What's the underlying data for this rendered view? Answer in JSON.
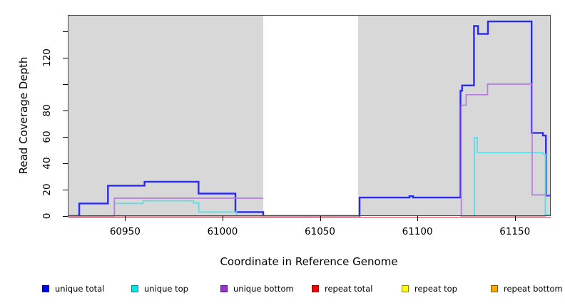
{
  "figure": {
    "xlabel": "Coordinate in Reference Genome",
    "ylabel": "Read Coverage Depth"
  },
  "chart_data": {
    "type": "line",
    "subtype": "step-coverage",
    "title": "",
    "xlabel": "Coordinate in Reference Genome",
    "ylabel": "Read Coverage Depth",
    "xlim": [
      60920.6,
      61168.4
    ],
    "ylim": [
      0,
      152.4
    ],
    "x_ticks": [
      60950,
      61000,
      61050,
      61100,
      61150
    ],
    "y_ticks": [
      0,
      20,
      40,
      60,
      80,
      100,
      120,
      140
    ],
    "y_tick_labels": [
      "0",
      "20",
      "40",
      "60",
      "80",
      "",
      "120",
      ""
    ],
    "grid": false,
    "legend_position": "bottom",
    "plot_bg_color": "#D8D8D8",
    "mask_region": {
      "x1": 61020.9,
      "x2": 61069.6,
      "color": "#FFFFFF"
    },
    "series": [
      {
        "name": "unique total",
        "color": "#2B2BF0",
        "width": 2.4,
        "segments": [
          {
            "points": [
              [
                60920.6,
                0
              ],
              [
                60926.5,
                9.5
              ],
              [
                60941.2,
                23
              ],
              [
                60960,
                26
              ],
              [
                60987.7,
                17
              ],
              [
                61006.6,
                3
              ],
              [
                61020.9,
                0
              ],
              [
                61070.3,
                14
              ],
              [
                61095.9,
                15
              ],
              [
                61097.8,
                14
              ],
              [
                61122.1,
                95
              ],
              [
                61122.9,
                99
              ],
              [
                61129,
                144
              ],
              [
                61131.1,
                138
              ],
              [
                61136.2,
                147.5
              ],
              [
                61158.6,
                63
              ],
              [
                61164.4,
                61
              ],
              [
                61165.9,
                15.5
              ]
            ],
            "end": 61168.4
          }
        ]
      },
      {
        "name": "unique top",
        "color": "#4FE0E9",
        "width": 1.7,
        "segments": [
          {
            "points": [
              [
                60944.5,
                0
              ],
              [
                60944.5,
                9.5
              ],
              [
                60959.2,
                11.5
              ],
              [
                60985.2,
                10
              ],
              [
                60987.8,
                3
              ],
              [
                61007.2,
                0
              ]
            ],
            "end": 61008.2
          },
          {
            "points": [
              [
                61129.3,
                0
              ],
              [
                61129.3,
                59.5
              ],
              [
                61130.7,
                48
              ],
              [
                61164.4,
                47
              ],
              [
                61165.6,
                1
              ]
            ],
            "end": 61168.4
          }
        ]
      },
      {
        "name": "unique bottom",
        "color": "#B47CDE",
        "width": 1.7,
        "segments": [
          {
            "points": [
              [
                60920.6,
                -0.5
              ],
              [
                60944.5,
                13.5
              ]
            ],
            "end": 61020.9
          },
          {
            "points": [
              [
                61122.5,
                -0.5
              ],
              [
                61122.5,
                84
              ],
              [
                61125,
                92
              ],
              [
                61136,
                100
              ],
              [
                61158.9,
                16
              ]
            ],
            "end": 61168.4
          }
        ]
      },
      {
        "name": "repeat total",
        "color": "#E4707E",
        "width": 1.6,
        "segments": [
          {
            "points": [
              [
                60920.6,
                -1
              ]
            ],
            "end": 61168.4
          }
        ]
      },
      {
        "name": "repeat top",
        "color": "#FFFF00",
        "width": 1.6,
        "segments": [
          {
            "points": [
              [
                60944.5,
                0
              ]
            ],
            "end": 61070.3
          },
          {
            "points": [
              [
                61122.1,
                0
              ]
            ],
            "end": 61165.9
          }
        ]
      },
      {
        "name": "repeat bottom",
        "color": "#FFA500",
        "width": 1.8,
        "segments": [
          {
            "points": [
              [
                60944.5,
                0
              ]
            ],
            "end": 61070.3
          },
          {
            "points": [
              [
                61122.1,
                0
              ]
            ],
            "end": 61165.9
          }
        ]
      }
    ]
  },
  "legend": {
    "items": [
      {
        "label": "unique total",
        "fill": "#0000FF",
        "border": "#00008B"
      },
      {
        "label": "unique top",
        "fill": "#00E5EE",
        "border": "#008B8B"
      },
      {
        "label": "unique bottom",
        "fill": "#9A32CD",
        "border": "#551A8B"
      },
      {
        "label": "repeat total",
        "fill": "#FF0000",
        "border": "#8B0000"
      },
      {
        "label": "repeat top",
        "fill": "#FFFF00",
        "border": "#8B8B00"
      },
      {
        "label": "repeat bottom",
        "fill": "#FFA500",
        "border": "#8B5A00"
      }
    ]
  }
}
